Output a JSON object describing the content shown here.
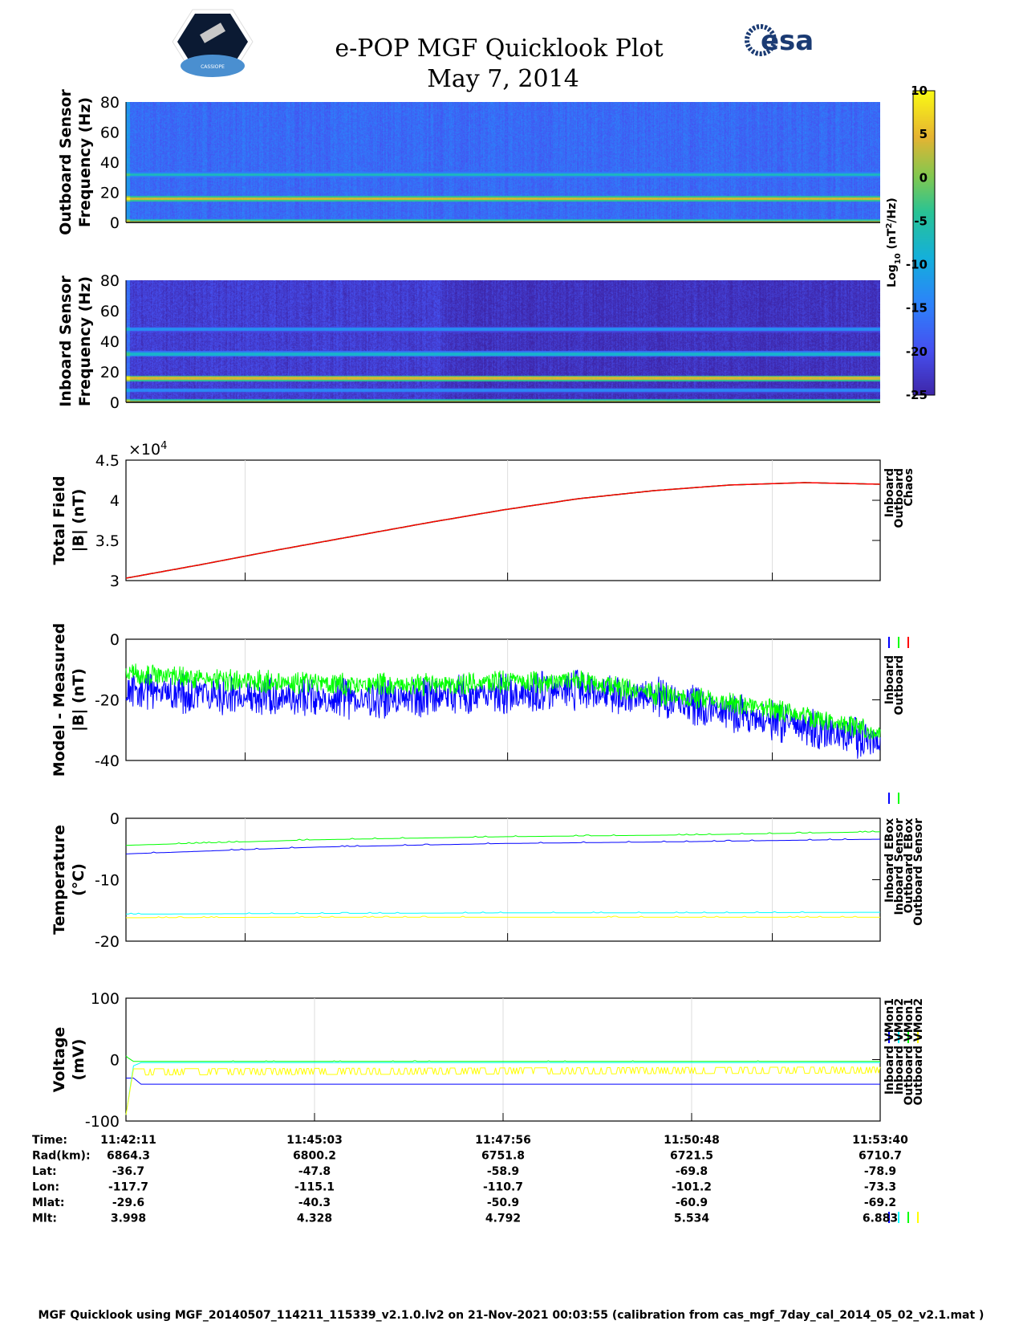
{
  "header": {
    "title": "e-POP MGF Quicklook Plot",
    "date": "May 7, 2014",
    "logo_left": "CASSIOPE",
    "logo_right": "esa"
  },
  "colors": {
    "inboard": "#0000ff",
    "outboard": "#00ff00",
    "chaos": "#ff0000",
    "cyan": "#00ffff",
    "yellow": "#ffff00"
  },
  "chart_data": [
    {
      "id": "outboard-spectrogram",
      "type": "heatmap",
      "ylabel": [
        "Outboard Sensor",
        "Frequency (Hz)"
      ],
      "ylim": [
        0,
        80
      ],
      "yticks": [
        "0",
        "20",
        "40",
        "60",
        "80"
      ],
      "background_level": -17,
      "bands": [
        {
          "freq": 16,
          "level": 4
        },
        {
          "freq": 32,
          "level": -7
        },
        {
          "freq": 0.5,
          "level": 2
        }
      ]
    },
    {
      "id": "inboard-spectrogram",
      "type": "heatmap",
      "ylabel": [
        "Inboard Sensor",
        "Frequency (Hz)"
      ],
      "ylim": [
        0,
        80
      ],
      "yticks": [
        "0",
        "20",
        "40",
        "60",
        "80"
      ],
      "background_level": -22,
      "bands": [
        {
          "freq": 16,
          "level": 4
        },
        {
          "freq": 32,
          "level": -8
        },
        {
          "freq": 48,
          "level": -13
        },
        {
          "freq": 8,
          "level": -14
        },
        {
          "freq": 0.5,
          "level": 2
        }
      ]
    },
    {
      "id": "colorbar",
      "type": "colorbar",
      "label": "Log10 (nT2/Hz)",
      "label_main": "Log",
      "label_sub": "10",
      "label_rest": " (nT",
      "label_sup": "2",
      "label_end": "/Hz)",
      "clim": [
        -25,
        10
      ],
      "ticks": [
        "10",
        "5",
        "0",
        "-5",
        "-10",
        "-15",
        "-20",
        "-25"
      ]
    },
    {
      "id": "total-field",
      "type": "line",
      "ylabel": [
        "Total Field",
        "|B| (nT)"
      ],
      "ylim": [
        3,
        4.5
      ],
      "yticks": [
        "3",
        "3.5",
        "4",
        "4.5"
      ],
      "exponent": "×10",
      "exponent_power": "4",
      "grid_x": [
        0.158,
        0.506,
        0.857
      ],
      "x": [
        0,
        0.1,
        0.2,
        0.3,
        0.4,
        0.5,
        0.6,
        0.7,
        0.8,
        0.9,
        1
      ],
      "series": [
        {
          "name": "Inboard",
          "color": "#0000ff",
          "values": [
            3.03,
            3.2,
            3.38,
            3.55,
            3.72,
            3.88,
            4.02,
            4.12,
            4.19,
            4.22,
            4.2
          ]
        },
        {
          "name": "Outboard",
          "color": "#00ff00",
          "values": [
            3.03,
            3.2,
            3.38,
            3.55,
            3.72,
            3.88,
            4.02,
            4.12,
            4.19,
            4.22,
            4.2
          ]
        },
        {
          "name": "Chaos",
          "color": "#ff0000",
          "values": [
            3.03,
            3.2,
            3.38,
            3.55,
            3.72,
            3.88,
            4.02,
            4.12,
            4.19,
            4.22,
            4.2
          ]
        }
      ]
    },
    {
      "id": "model-measured",
      "type": "line",
      "ylabel": [
        "Model - Measured",
        "|B| (nT)"
      ],
      "ylim": [
        -40,
        0
      ],
      "yticks": [
        "-40",
        "-20",
        "0"
      ],
      "grid_x": [
        0.158,
        0.506,
        0.857
      ],
      "x": [
        0,
        0.1,
        0.2,
        0.3,
        0.4,
        0.5,
        0.6,
        0.7,
        0.8,
        0.9,
        1
      ],
      "series": [
        {
          "name": "Inboard",
          "color": "#0000ff",
          "values": [
            -17,
            -18,
            -19,
            -20,
            -19,
            -18,
            -17,
            -19,
            -24,
            -29,
            -34
          ],
          "noise": 7
        },
        {
          "name": "Outboard",
          "color": "#00ff00",
          "values": [
            -11,
            -13,
            -14,
            -15,
            -15,
            -14,
            -14,
            -18,
            -21,
            -25,
            -31
          ],
          "noise": 4
        }
      ]
    },
    {
      "id": "temperature",
      "type": "line",
      "ylabel": [
        "Temperature",
        "(°C)"
      ],
      "ylim": [
        -20,
        0
      ],
      "yticks": [
        "-20",
        "-10",
        "0"
      ],
      "grid_x": [
        0.158,
        0.506,
        0.857
      ],
      "x": [
        0,
        0.25,
        0.5,
        0.75,
        1
      ],
      "series": [
        {
          "name": "Inboard EBox",
          "color": "#0000ff",
          "values": [
            -5.8,
            -4.7,
            -4.1,
            -3.8,
            -3.4
          ],
          "noise": 0.15
        },
        {
          "name": "Inboard Sensor",
          "color": "#00ffff",
          "values": [
            -15.6,
            -15.5,
            -15.4,
            -15.4,
            -15.3
          ],
          "noise": 0.15
        },
        {
          "name": "Outboard EBox",
          "color": "#00ff00",
          "values": [
            -4.4,
            -3.5,
            -3.0,
            -2.7,
            -2.2
          ],
          "noise": 0.15
        },
        {
          "name": "Outboard Sensor",
          "color": "#ffff00",
          "values": [
            -16.2,
            -16.1,
            -16.1,
            -16.1,
            -16.1
          ],
          "noise": 0.15
        }
      ]
    },
    {
      "id": "voltage",
      "type": "line",
      "ylabel": [
        "Voltage",
        "(mV)"
      ],
      "ylim": [
        -100,
        100
      ],
      "yticks": [
        "-100",
        "0",
        "100"
      ],
      "grid_x": [
        0.25,
        0.5,
        0.75
      ],
      "x": [
        0,
        0.01,
        0.02,
        1
      ],
      "series": [
        {
          "name": "Inboard VMon1",
          "color": "#0000ff",
          "values": [
            -30,
            -30,
            -40,
            -40
          ],
          "noise": 0
        },
        {
          "name": "Inboard VMon2",
          "color": "#00ffff",
          "values": [
            -90,
            -10,
            -5,
            -5
          ],
          "noise": 0
        },
        {
          "name": "Outboard VMon1",
          "color": "#00ff00",
          "values": [
            5,
            -3,
            -3,
            -3
          ],
          "noise": 1
        },
        {
          "name": "Outboard VMon2",
          "color": "#ffff00",
          "values": [
            -90,
            -15,
            -15,
            -12
          ],
          "noise": 10
        }
      ]
    }
  ],
  "ephemeris": {
    "labels": [
      "Time:",
      "Rad(km):",
      "Lat:",
      "Lon:",
      "Mlat:",
      "Mlt:"
    ],
    "columns": [
      [
        "11:42:11",
        "6864.3",
        "-36.7",
        "-117.7",
        "-29.6",
        "3.998"
      ],
      [
        "11:45:03",
        "6800.2",
        "-47.8",
        "-115.1",
        "-40.3",
        "4.328"
      ],
      [
        "11:47:56",
        "6751.8",
        "-58.9",
        "-110.7",
        "-50.9",
        "4.792"
      ],
      [
        "11:50:48",
        "6721.5",
        "-69.8",
        "-101.2",
        "-60.9",
        "5.534"
      ],
      [
        "11:53:40",
        "6710.7",
        "-78.9",
        "-73.3",
        "-69.2",
        "6.883"
      ]
    ]
  },
  "footer": "MGF Quicklook using MGF_20140507_114211_115339_v2.1.0.lv2 on 21-Nov-2021 00:03:55 (calibration from cas_mgf_7day_cal_2014_05_02_v2.1.mat )"
}
